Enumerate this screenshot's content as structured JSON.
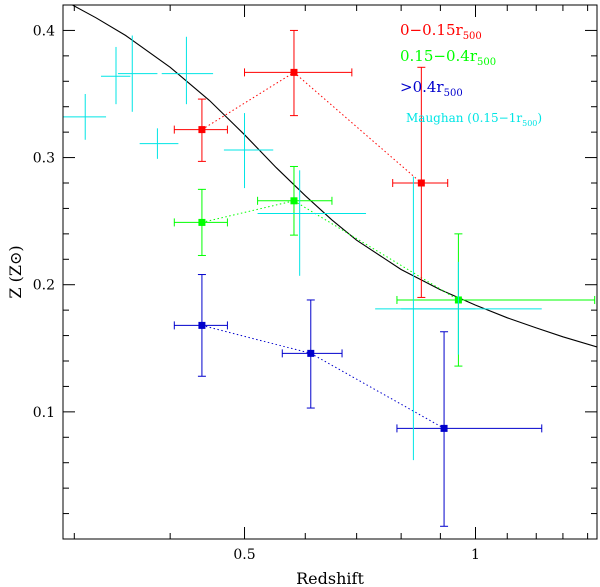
{
  "chart_data": {
    "type": "scatter",
    "title": "",
    "xlabel": "Redshift",
    "ylabel": "Z (Z⊙)",
    "xscale": "log",
    "xlim": [
      0.29,
      1.44
    ],
    "ylim": [
      0.0,
      0.42
    ],
    "x_ticks": [
      {
        "value": 0.5,
        "label": "0.5"
      },
      {
        "value": 1.0,
        "label": "1"
      }
    ],
    "y_ticks": [
      {
        "value": 0.1,
        "label": "0.1"
      },
      {
        "value": 0.2,
        "label": "0.2"
      },
      {
        "value": 0.3,
        "label": "0.3"
      },
      {
        "value": 0.4,
        "label": "0.4"
      }
    ],
    "legend_position": "top-right",
    "series": [
      {
        "name": "0−0.15r500",
        "legend_main": "0−0.15r",
        "legend_sub": "500",
        "color": "#ff0000",
        "marker": "square",
        "connect": "dotted",
        "points": [
          {
            "x": 0.44,
            "y": 0.322,
            "xlo": 0.405,
            "xhi": 0.475,
            "ylo": 0.297,
            "yhi": 0.346
          },
          {
            "x": 0.58,
            "y": 0.367,
            "xlo": 0.5,
            "xhi": 0.69,
            "ylo": 0.333,
            "yhi": 0.4
          },
          {
            "x": 0.85,
            "y": 0.28,
            "xlo": 0.78,
            "xhi": 0.92,
            "ylo": 0.19,
            "yhi": 0.371
          }
        ]
      },
      {
        "name": "0.15−0.4r500",
        "legend_main": "0.15−0.4r",
        "legend_sub": "500",
        "color": "#00ff00",
        "marker": "square",
        "connect": "dotted",
        "points": [
          {
            "x": 0.44,
            "y": 0.249,
            "xlo": 0.405,
            "xhi": 0.475,
            "ylo": 0.223,
            "yhi": 0.275
          },
          {
            "x": 0.58,
            "y": 0.266,
            "xlo": 0.52,
            "xhi": 0.65,
            "ylo": 0.239,
            "yhi": 0.293
          },
          {
            "x": 0.95,
            "y": 0.188,
            "xlo": 0.79,
            "xhi": 1.43,
            "ylo": 0.136,
            "yhi": 0.24
          }
        ]
      },
      {
        "name": ">0.4r500",
        "legend_main": ">0.4r",
        "legend_sub": "500",
        "color": "#0000cc",
        "marker": "square",
        "connect": "dotted",
        "points": [
          {
            "x": 0.44,
            "y": 0.168,
            "xlo": 0.405,
            "xhi": 0.475,
            "ylo": 0.128,
            "yhi": 0.208
          },
          {
            "x": 0.61,
            "y": 0.146,
            "xlo": 0.56,
            "xhi": 0.67,
            "ylo": 0.103,
            "yhi": 0.188
          },
          {
            "x": 0.91,
            "y": 0.087,
            "xlo": 0.79,
            "xhi": 1.22,
            "ylo": 0.01,
            "yhi": 0.163
          }
        ]
      },
      {
        "name": "Maughan (0.15−1r500)",
        "legend_main": "Maughan (0.15−1r",
        "legend_sub": "500",
        "legend_tail": ")",
        "color": "#00e5e5",
        "marker": "cross",
        "connect": "none",
        "points": [
          {
            "x": 0.31,
            "y": 0.332,
            "xlo": 0.29,
            "xhi": 0.33,
            "ylo": 0.314,
            "yhi": 0.35
          },
          {
            "x": 0.34,
            "y": 0.364,
            "xlo": 0.325,
            "xhi": 0.355,
            "ylo": 0.342,
            "yhi": 0.387
          },
          {
            "x": 0.357,
            "y": 0.366,
            "xlo": 0.342,
            "xhi": 0.385,
            "ylo": 0.336,
            "yhi": 0.396
          },
          {
            "x": 0.385,
            "y": 0.311,
            "xlo": 0.365,
            "xhi": 0.41,
            "ylo": 0.299,
            "yhi": 0.323
          },
          {
            "x": 0.42,
            "y": 0.366,
            "xlo": 0.39,
            "xhi": 0.455,
            "ylo": 0.342,
            "yhi": 0.395
          },
          {
            "x": 0.5,
            "y": 0.306,
            "xlo": 0.47,
            "xhi": 0.545,
            "ylo": 0.276,
            "yhi": 0.335
          },
          {
            "x": 0.59,
            "y": 0.256,
            "xlo": 0.52,
            "xhi": 0.72,
            "ylo": 0.207,
            "yhi": 0.29
          },
          {
            "x": 0.83,
            "y": 0.181,
            "xlo": 0.74,
            "xhi": 1.0,
            "ylo": 0.062,
            "yhi": 0.285
          },
          {
            "x": 0.95,
            "y": 0.181,
            "xlo": 0.8,
            "xhi": 1.22,
            "ylo": 0.145,
            "yhi": 0.218
          }
        ]
      }
    ],
    "model_curve": {
      "name": "model",
      "color": "#000000",
      "points": [
        {
          "x": 0.29,
          "y": 0.424
        },
        {
          "x": 0.32,
          "y": 0.41
        },
        {
          "x": 0.35,
          "y": 0.396
        },
        {
          "x": 0.4,
          "y": 0.371
        },
        {
          "x": 0.45,
          "y": 0.345
        },
        {
          "x": 0.5,
          "y": 0.318
        },
        {
          "x": 0.55,
          "y": 0.292
        },
        {
          "x": 0.6,
          "y": 0.27
        },
        {
          "x": 0.65,
          "y": 0.251
        },
        {
          "x": 0.7,
          "y": 0.235
        },
        {
          "x": 0.8,
          "y": 0.212
        },
        {
          "x": 0.9,
          "y": 0.196
        },
        {
          "x": 1.0,
          "y": 0.184
        },
        {
          "x": 1.1,
          "y": 0.174
        },
        {
          "x": 1.2,
          "y": 0.166
        },
        {
          "x": 1.3,
          "y": 0.159
        },
        {
          "x": 1.44,
          "y": 0.151
        }
      ]
    }
  }
}
